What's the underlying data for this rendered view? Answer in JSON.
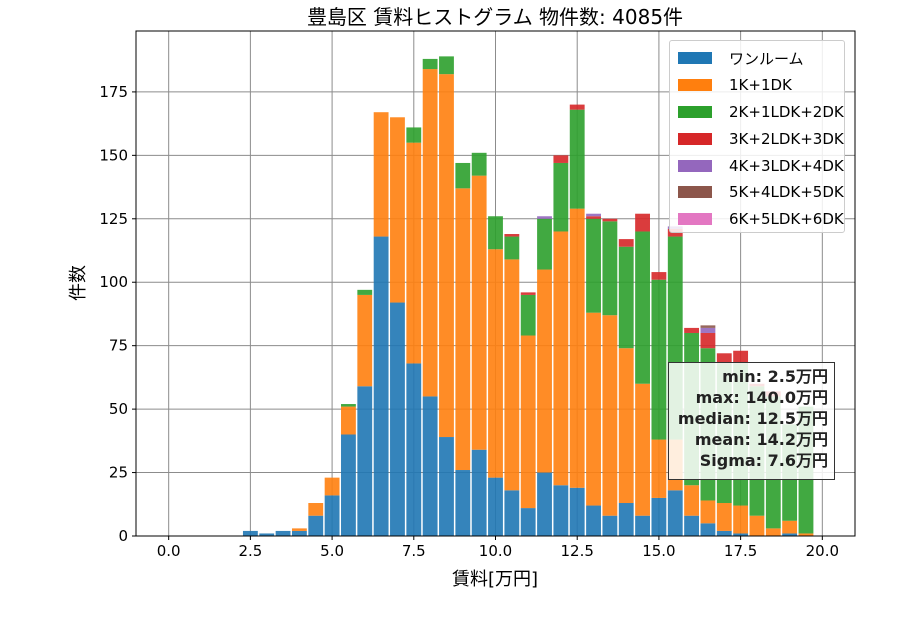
{
  "chart_data": {
    "type": "bar",
    "stacked": true,
    "title": "豊島区 賃料ヒストグラム 物件数: 4085件",
    "xlabel": "賃料[万円]",
    "ylabel": "件数",
    "xlim": [
      -1.0,
      21.0
    ],
    "ylim": [
      0,
      199
    ],
    "xticks": [
      "0.0",
      "2.5",
      "5.0",
      "7.5",
      "10.0",
      "12.5",
      "15.0",
      "17.5",
      "20.0"
    ],
    "xtick_values": [
      0,
      2.5,
      5,
      7.5,
      10,
      12.5,
      15,
      17.5,
      20
    ],
    "yticks": [
      "0",
      "25",
      "50",
      "75",
      "100",
      "125",
      "150",
      "175"
    ],
    "ytick_values": [
      0,
      25,
      50,
      75,
      100,
      125,
      150,
      175
    ],
    "grid": true,
    "legend_position": "top-right",
    "bin_width": 0.5,
    "x": [
      2.5,
      3.0,
      3.5,
      4.0,
      4.5,
      5.0,
      5.5,
      6.0,
      6.5,
      7.0,
      7.5,
      8.0,
      8.5,
      9.0,
      9.5,
      10.0,
      10.5,
      11.0,
      11.5,
      12.0,
      12.5,
      13.0,
      13.5,
      14.0,
      14.5,
      15.0,
      15.5,
      16.0,
      16.5,
      17.0,
      17.5,
      18.0,
      18.5,
      19.0,
      19.5
    ],
    "series": [
      {
        "name": "ワンルーム",
        "color": "#1f77b4",
        "values": [
          2,
          1,
          2,
          2,
          8,
          16,
          40,
          59,
          118,
          92,
          68,
          55,
          39,
          26,
          34,
          23,
          18,
          11,
          25,
          20,
          19,
          12,
          8,
          13,
          8,
          15,
          18,
          8,
          5,
          2,
          1,
          0,
          0,
          1,
          0
        ]
      },
      {
        "name": "1K+1DK",
        "color": "#ff7f0e",
        "values": [
          0,
          0,
          0,
          1,
          5,
          7,
          11,
          36,
          49,
          73,
          87,
          129,
          143,
          111,
          108,
          90,
          91,
          68,
          80,
          100,
          110,
          76,
          79,
          61,
          52,
          23,
          20,
          12,
          9,
          11,
          11,
          8,
          3,
          5,
          1
        ]
      },
      {
        "name": "2K+1LDK+2DK",
        "color": "#2ca02c",
        "values": [
          0,
          0,
          0,
          0,
          0,
          0,
          1,
          2,
          0,
          0,
          6,
          4,
          7,
          10,
          9,
          13,
          9,
          16,
          20,
          27,
          39,
          37,
          37,
          40,
          60,
          63,
          80,
          60,
          60,
          55,
          56,
          51,
          52,
          38,
          50
        ]
      },
      {
        "name": "3K+2LDK+3DK",
        "color": "#d62728",
        "values": [
          0,
          0,
          0,
          0,
          0,
          0,
          0,
          0,
          0,
          0,
          0,
          0,
          0,
          0,
          0,
          0,
          1,
          1,
          0,
          3,
          2,
          1,
          1,
          3,
          7,
          3,
          3,
          2,
          6,
          4,
          5,
          1,
          2,
          0,
          0
        ]
      },
      {
        "name": "4K+3LDK+4DK",
        "color": "#9467bd",
        "values": [
          0,
          0,
          0,
          0,
          0,
          0,
          0,
          0,
          0,
          0,
          0,
          0,
          0,
          0,
          0,
          0,
          0,
          0,
          1,
          0,
          0,
          1,
          0,
          0,
          0,
          0,
          1,
          0,
          2,
          0,
          0,
          0,
          0,
          0,
          0
        ]
      },
      {
        "name": "5K+4LDK+5DK",
        "color": "#8c564b",
        "values": [
          0,
          0,
          0,
          0,
          0,
          0,
          0,
          0,
          0,
          0,
          0,
          0,
          0,
          0,
          0,
          0,
          0,
          0,
          0,
          0,
          0,
          0,
          0,
          0,
          0,
          0,
          0,
          0,
          1,
          0,
          0,
          0,
          0,
          0,
          0
        ]
      },
      {
        "name": "6K+5LDK+6DK",
        "color": "#e377c2",
        "values": [
          0,
          0,
          0,
          0,
          0,
          0,
          0,
          0,
          0,
          0,
          0,
          0,
          0,
          0,
          0,
          0,
          0,
          0,
          0,
          0,
          0,
          0,
          0,
          0,
          0,
          0,
          0,
          0,
          0,
          0,
          0,
          0,
          0,
          0,
          0
        ]
      }
    ],
    "stats": {
      "min": "min: 2.5万円",
      "max": "max: 140.0万円",
      "median": "median: 12.5万円",
      "mean": "mean: 14.2万円",
      "sigma": "Sigma: 7.6万円"
    }
  }
}
